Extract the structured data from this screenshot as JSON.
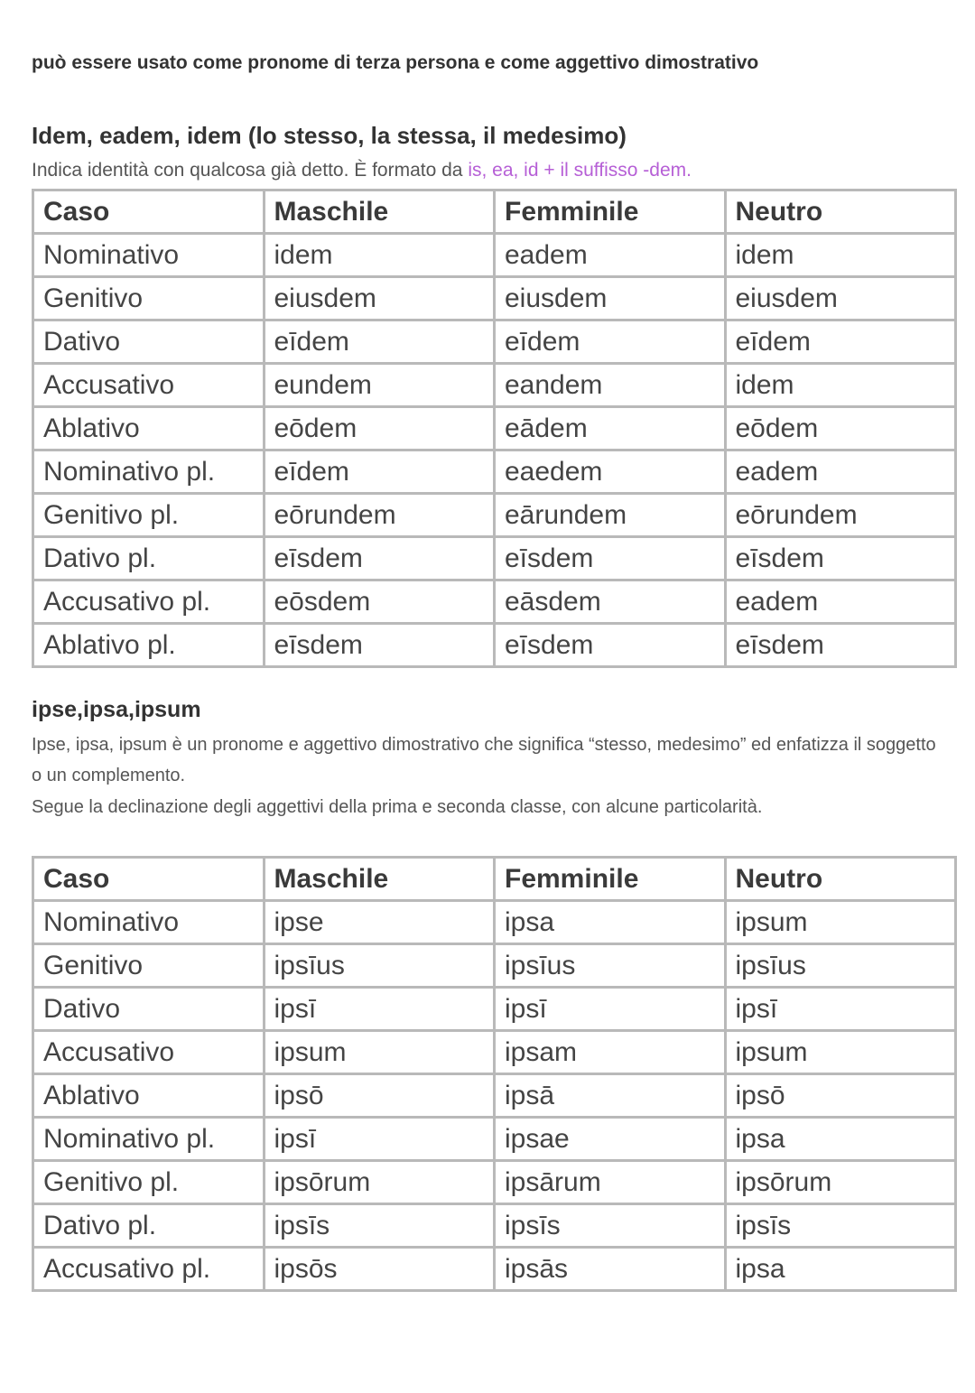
{
  "intro": "può essere usato come pronome di terza persona e come aggettivo dimostrativo",
  "section1": {
    "title": "Idem, eadem, idem (lo stesso, la stessa, il medesimo)",
    "desc_plain": "Indica identità con qualcosa già detto. È formato da ",
    "desc_accent": "is, ea, id + il suffisso -dem.",
    "accent_color": "#b65fd6",
    "table": {
      "headers": [
        "Caso",
        "Maschile",
        "Femminile",
        "Neutro"
      ],
      "rows": [
        [
          "Nominativo",
          "idem",
          "eadem",
          "idem"
        ],
        [
          "Genitivo",
          "eiusdem",
          "eiusdem",
          "eiusdem"
        ],
        [
          "Dativo",
          "eīdem",
          "eīdem",
          "eīdem"
        ],
        [
          "Accusativo",
          "eundem",
          "eandem",
          "idem"
        ],
        [
          "Ablativo",
          "eōdem",
          "eādem",
          "eōdem"
        ],
        [
          "Nominativo pl.",
          "eīdem",
          "eaedem",
          "eadem"
        ],
        [
          "Genitivo pl.",
          "eōrundem",
          "eārundem",
          "eōrundem"
        ],
        [
          "Dativo pl.",
          "eīsdem",
          "eīsdem",
          "eīsdem"
        ],
        [
          "Accusativo pl.",
          "eōsdem",
          "eāsdem",
          "eadem"
        ],
        [
          "Ablativo pl.",
          "eīsdem",
          "eīsdem",
          "eīsdem"
        ]
      ]
    }
  },
  "section2": {
    "title": "ipse,ipsa,ipsum",
    "para1": "Ipse, ipsa, ipsum è un pronome e aggettivo dimostrativo che significa “stesso, medesimo” ed enfatizza il soggetto o un complemento.",
    "para2": "Segue la declinazione degli aggettivi della prima e seconda classe, con alcune particolarità.",
    "table": {
      "headers": [
        "Caso",
        "Maschile",
        "Femminile",
        "Neutro"
      ],
      "rows": [
        [
          "Nominativo",
          "ipse",
          "ipsa",
          "ipsum"
        ],
        [
          "Genitivo",
          "ipsīus",
          "ipsīus",
          "ipsīus"
        ],
        [
          "Dativo",
          "ipsī",
          "ipsī",
          "ipsī"
        ],
        [
          "Accusativo",
          "ipsum",
          "ipsam",
          "ipsum"
        ],
        [
          "Ablativo",
          "ipsō",
          "ipsā",
          "ipsō"
        ],
        [
          "Nominativo pl.",
          "ipsī",
          "ipsae",
          "ipsa"
        ],
        [
          "Genitivo pl.",
          "ipsōrum",
          "ipsārum",
          "ipsōrum"
        ],
        [
          "Dativo pl.",
          "ipsīs",
          "ipsīs",
          "ipsīs"
        ],
        [
          "Accusativo pl.",
          "ipsōs",
          "ipsās",
          "ipsa"
        ]
      ]
    }
  }
}
